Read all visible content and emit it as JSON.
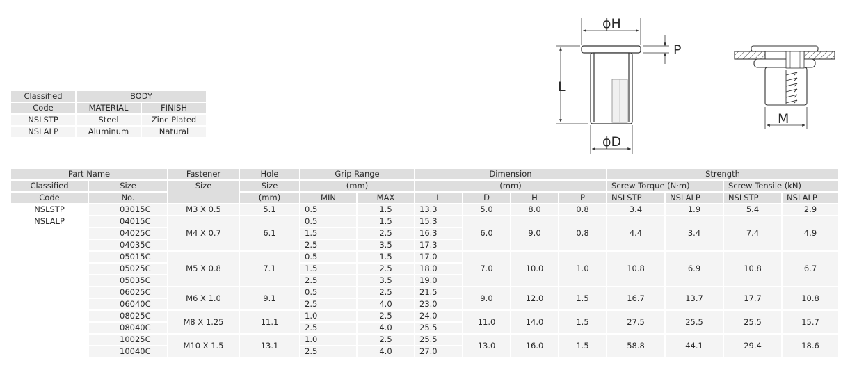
{
  "spec": {
    "h_classified": "Classified",
    "h_code": "Code",
    "h_body": "BODY",
    "h_material": "MATERIAL",
    "h_finish": "FINISH",
    "rows": [
      {
        "code": "NSLSTP",
        "material": "Steel",
        "finish": "Zinc Plated"
      },
      {
        "code": "NSLALP",
        "material": "Aluminum",
        "finish": "Natural"
      }
    ]
  },
  "drawing": {
    "label_dia_h": "ϕH",
    "label_p": "P",
    "label_l": "L",
    "label_dia_d": "ϕD",
    "label_m": "M"
  },
  "main": {
    "h_part_name": "Part Name",
    "h_classified": "Classified",
    "h_code": "Code",
    "h_size": "Size",
    "h_no": "No.",
    "h_fastener": "Fastener",
    "h_fastener_size": "Size",
    "h_hole": "Hole",
    "h_hole_size": "Size",
    "h_hole_mm": "(mm)",
    "h_grip": "Grip Range",
    "h_grip_mm": "(mm)",
    "h_min": "MIN",
    "h_max": "MAX",
    "h_dimension": "Dimension",
    "h_dim_mm": "(mm)",
    "h_l": "L",
    "h_d": "D",
    "h_h": "H",
    "h_p": "P",
    "h_strength": "Strength",
    "h_torque": "Screw Torque (N·m)",
    "h_tensile": "Screw Tensile (kN)",
    "h_t_stp": "NSLSTP",
    "h_t_alp": "NSLALP",
    "h_s_stp": "NSLSTP",
    "h_s_alp": "NSLALP",
    "code_1": "NSLSTP",
    "code_2": "NSLALP",
    "groups": [
      {
        "fastener": "M3 X 0.5",
        "hole": "5.1",
        "D": "5.0",
        "H": "8.0",
        "P": "0.8",
        "torque_stp": "3.4",
        "torque_alp": "1.9",
        "tensile_stp": "5.4",
        "tensile_alp": "2.9",
        "rows": [
          {
            "size": "03015C",
            "min": "0.5",
            "max": "1.5",
            "L": "13.3"
          }
        ]
      },
      {
        "fastener": "M4 X 0.7",
        "hole": "6.1",
        "D": "6.0",
        "H": "9.0",
        "P": "0.8",
        "torque_stp": "4.4",
        "torque_alp": "3.4",
        "tensile_stp": "7.4",
        "tensile_alp": "4.9",
        "rows": [
          {
            "size": "04015C",
            "min": "0.5",
            "max": "1.5",
            "L": "15.3"
          },
          {
            "size": "04025C",
            "min": "1.5",
            "max": "2.5",
            "L": "16.3"
          },
          {
            "size": "04035C",
            "min": "2.5",
            "max": "3.5",
            "L": "17.3"
          }
        ]
      },
      {
        "fastener": "M5 X 0.8",
        "hole": "7.1",
        "D": "7.0",
        "H": "10.0",
        "P": "1.0",
        "torque_stp": "10.8",
        "torque_alp": "6.9",
        "tensile_stp": "10.8",
        "tensile_alp": "6.7",
        "rows": [
          {
            "size": "05015C",
            "min": "0.5",
            "max": "1.5",
            "L": "17.0"
          },
          {
            "size": "05025C",
            "min": "1.5",
            "max": "2.5",
            "L": "18.0"
          },
          {
            "size": "05035C",
            "min": "2.5",
            "max": "3.5",
            "L": "19.0"
          }
        ]
      },
      {
        "fastener": "M6 X 1.0",
        "hole": "9.1",
        "D": "9.0",
        "H": "12.0",
        "P": "1.5",
        "torque_stp": "16.7",
        "torque_alp": "13.7",
        "tensile_stp": "17.7",
        "tensile_alp": "10.8",
        "rows": [
          {
            "size": "06025C",
            "min": "0.5",
            "max": "2.5",
            "L": "21.5"
          },
          {
            "size": "06040C",
            "min": "2.5",
            "max": "4.0",
            "L": "23.0"
          }
        ]
      },
      {
        "fastener": "M8 X 1.25",
        "hole": "11.1",
        "D": "11.0",
        "H": "14.0",
        "P": "1.5",
        "torque_stp": "27.5",
        "torque_alp": "25.5",
        "tensile_stp": "25.5",
        "tensile_alp": "15.7",
        "rows": [
          {
            "size": "08025C",
            "min": "1.0",
            "max": "2.5",
            "L": "24.0"
          },
          {
            "size": "08040C",
            "min": "2.5",
            "max": "4.0",
            "L": "25.5"
          }
        ]
      },
      {
        "fastener": "M10 X 1.5",
        "hole": "13.1",
        "D": "13.0",
        "H": "16.0",
        "P": "1.5",
        "torque_stp": "58.8",
        "torque_alp": "44.1",
        "tensile_stp": "29.4",
        "tensile_alp": "18.6",
        "rows": [
          {
            "size": "10025C",
            "min": "1.0",
            "max": "2.5",
            "L": "25.5"
          },
          {
            "size": "10040C",
            "min": "2.5",
            "max": "4.0",
            "L": "27.0"
          }
        ]
      }
    ]
  }
}
